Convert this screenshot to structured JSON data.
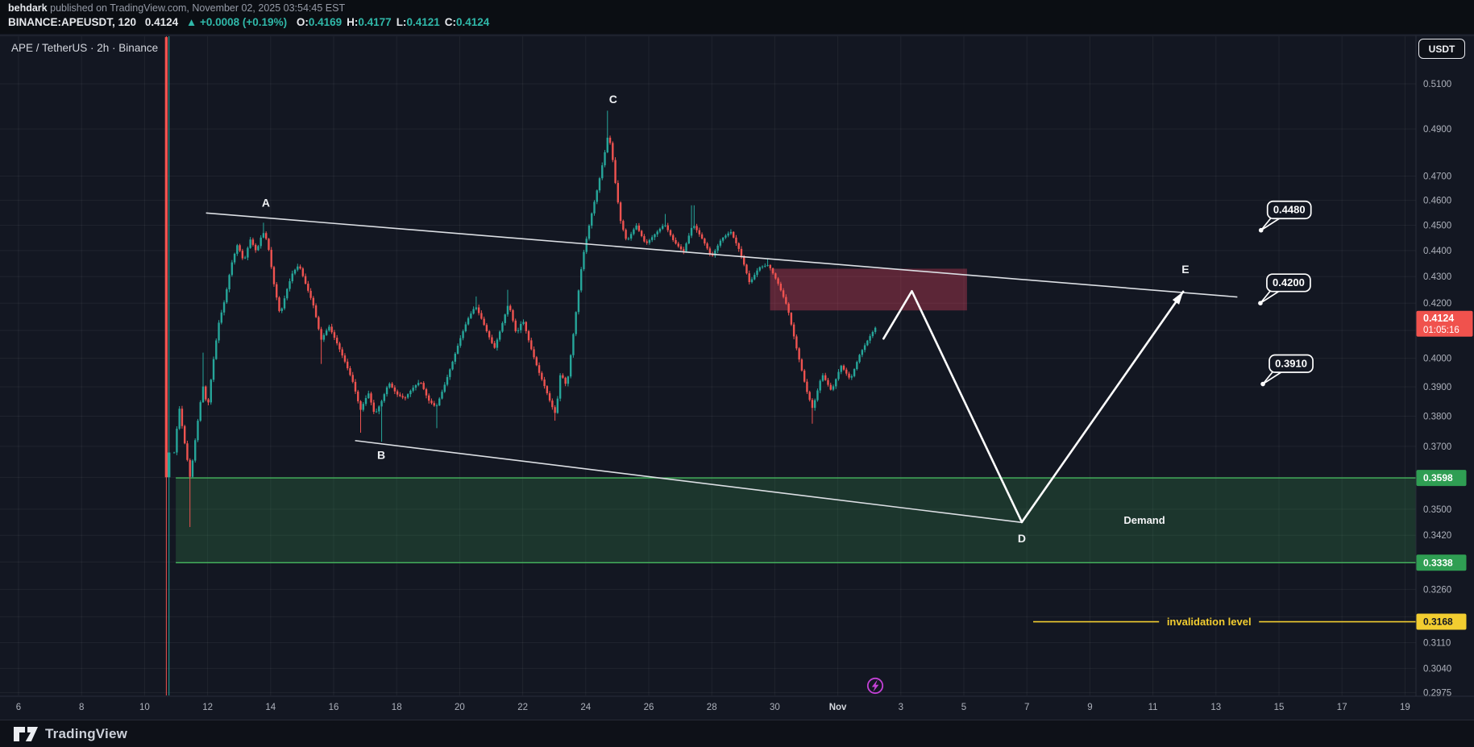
{
  "header": {
    "author": "behdark",
    "published": " published on TradingView.com, November 02, 2025 03:54:45 EST",
    "symbol_line": "BINANCE:APEUSDT, 120",
    "last_price": "0.4124",
    "change": "▲ +0.0008 (+0.19%)",
    "ohlc": [
      {
        "k": "O:",
        "v": "0.4169"
      },
      {
        "k": "H:",
        "v": "0.4177"
      },
      {
        "k": "L:",
        "v": "0.4121"
      },
      {
        "k": "C:",
        "v": "0.4124"
      }
    ]
  },
  "chart": {
    "title": "APE / TetherUS · 2h · Binance",
    "unit": "USDT"
  },
  "footer": {
    "brand": "TradingView"
  },
  "chart_data": {
    "type": "candlestick",
    "title": "APE / TetherUS · 2h · Binance",
    "symbol": "BINANCE:APEUSDT",
    "interval_minutes": 120,
    "scale_type": "log",
    "ohlc_current": {
      "open": 0.4169,
      "high": 0.4177,
      "low": 0.4121,
      "close": 0.4124,
      "change": "+0.0008",
      "change_pct": "+0.19%"
    },
    "x_range": {
      "start_label": "Oct 6",
      "end_label": "Nov 19"
    },
    "y_range": {
      "min": 0.2975,
      "max": 0.5315
    },
    "colors": {
      "up": "#26a69a",
      "down": "#ef5350",
      "bg": "#131722",
      "accent_yellow": "#f2cd30",
      "accent_green": "#2f9e53",
      "tag_red": "#f0524d",
      "zone_red": "rgba(242,70,100,0.33)",
      "zone_green_fill": "rgba(66,179,91,0.20)",
      "zone_green_edge": "#43b45c",
      "purple": "#c341d6"
    },
    "y_axis_labels": [
      {
        "p": 0.51,
        "t": "0.5100"
      },
      {
        "p": 0.49,
        "t": "0.4900"
      },
      {
        "p": 0.47,
        "t": "0.4700"
      },
      {
        "p": 0.46,
        "t": "0.4600"
      },
      {
        "p": 0.45,
        "t": "0.4500"
      },
      {
        "p": 0.44,
        "t": "0.4400"
      },
      {
        "p": 0.43,
        "t": "0.4300"
      },
      {
        "p": 0.42,
        "t": "0.4200"
      },
      {
        "p": 0.4,
        "t": "0.4000"
      },
      {
        "p": 0.39,
        "t": "0.3900"
      },
      {
        "p": 0.38,
        "t": "0.3800"
      },
      {
        "p": 0.37,
        "t": "0.3700"
      },
      {
        "p": 0.35,
        "t": "0.3500"
      },
      {
        "p": 0.342,
        "t": "0.3420"
      },
      {
        "p": 0.326,
        "t": "0.3260"
      },
      {
        "p": 0.311,
        "t": "0.3110"
      },
      {
        "p": 0.304,
        "t": "0.3040"
      },
      {
        "p": 0.2975,
        "t": "0.2975"
      }
    ],
    "y_axis_tags": [
      {
        "p": 0.3598,
        "t": "0.3598",
        "style": "green"
      },
      {
        "p": 0.3338,
        "t": "0.3338",
        "style": "green"
      },
      {
        "p": 0.3168,
        "t": "0.3168",
        "style": "yellow"
      }
    ],
    "current_price_tag": {
      "p": 0.4124,
      "t": "0.4124",
      "countdown": "01:05:16"
    },
    "x_axis_labels": [
      {
        "d": 6,
        "t": "6"
      },
      {
        "d": 8,
        "t": "8"
      },
      {
        "d": 10,
        "t": "10"
      },
      {
        "d": 12,
        "t": "12"
      },
      {
        "d": 14,
        "t": "14"
      },
      {
        "d": 16,
        "t": "16"
      },
      {
        "d": 18,
        "t": "18"
      },
      {
        "d": 20,
        "t": "20"
      },
      {
        "d": 22,
        "t": "22"
      },
      {
        "d": 24,
        "t": "24"
      },
      {
        "d": 26,
        "t": "26"
      },
      {
        "d": 28,
        "t": "28"
      },
      {
        "d": 30,
        "t": "30"
      },
      {
        "d": 32,
        "t": "Nov"
      },
      {
        "d": 34,
        "t": "3"
      },
      {
        "d": 36,
        "t": "5"
      },
      {
        "d": 38,
        "t": "7"
      },
      {
        "d": 40,
        "t": "9"
      },
      {
        "d": 42,
        "t": "11"
      },
      {
        "d": 44,
        "t": "13"
      },
      {
        "d": 46,
        "t": "15"
      },
      {
        "d": 48,
        "t": "17"
      },
      {
        "d": 50,
        "t": "19"
      }
    ],
    "grid": {
      "h_prices": [
        0.51,
        0.49,
        0.47,
        0.46,
        0.45,
        0.44,
        0.43,
        0.42,
        0.41,
        0.4,
        0.39,
        0.38,
        0.37,
        0.36,
        0.35,
        0.342,
        0.334,
        0.326,
        0.3182,
        0.311,
        0.304,
        0.2975
      ],
      "v_days": [
        6,
        8,
        10,
        12,
        14,
        16,
        18,
        20,
        22,
        24,
        26,
        28,
        30,
        32,
        34,
        36,
        38,
        40,
        42,
        44,
        46,
        48,
        50
      ]
    },
    "zones": [
      {
        "name": "supply",
        "d1": 29.85,
        "d2": 36.1,
        "p_top": 0.433,
        "p_bottom": 0.4173
      },
      {
        "name": "demand",
        "d1": 10.99,
        "d2": 50.35,
        "p_top": 0.3598,
        "p_bottom": 0.3338,
        "label": "Demand",
        "label_d": 41.73,
        "label_p": 0.3465
      }
    ],
    "trendlines": [
      {
        "name": "upper",
        "d1": 11.95,
        "p1": 0.4549,
        "d2": 44.68,
        "p2": 0.4223
      },
      {
        "name": "lower",
        "d1": 16.68,
        "p1": 0.3719,
        "d2": 37.84,
        "p2": 0.3459
      }
    ],
    "projection_path": [
      [
        33.45,
        0.407
      ],
      [
        34.35,
        0.4245
      ],
      [
        37.84,
        0.346
      ]
    ],
    "projection_arrow": {
      "from": [
        37.84,
        0.346
      ],
      "to": [
        42.96,
        0.4243
      ]
    },
    "wave_letters": [
      {
        "t": "A",
        "d": 13.85,
        "p": 0.459
      },
      {
        "t": "B",
        "d": 17.51,
        "p": 0.3672
      },
      {
        "t": "C",
        "d": 24.87,
        "p": 0.5031
      },
      {
        "t": "D",
        "d": 37.84,
        "p": 0.3411
      },
      {
        "t": "E",
        "d": 43.03,
        "p": 0.4329
      }
    ],
    "price_targets": [
      {
        "label": "0.4480",
        "price": 0.448,
        "d": 45.43
      },
      {
        "label": "0.4200",
        "price": 0.42,
        "d": 45.41
      },
      {
        "label": "0.3910",
        "price": 0.391,
        "d": 45.49
      }
    ],
    "invalidation": {
      "label": "invalidation level",
      "price": 0.3168,
      "d1": 38.2,
      "d_label": 43.78
    },
    "special_candles": [
      {
        "d": 10.69,
        "o": 0.5315,
        "h": 0.533,
        "l": 0.296,
        "c": 0.36
      },
      {
        "d": 10.775,
        "o": 0.36,
        "h": 0.532,
        "l": 0.2965,
        "c": 0.368
      }
    ],
    "price_path": [
      [
        10.94,
        0.368
      ],
      [
        11.1,
        0.383
      ],
      [
        11.25,
        0.3725
      ],
      [
        11.45,
        0.3595
      ],
      [
        11.65,
        0.3755
      ],
      [
        11.85,
        0.3905
      ],
      [
        12.0,
        0.3825
      ],
      [
        12.15,
        0.3965
      ],
      [
        12.35,
        0.4125
      ],
      [
        12.55,
        0.4215
      ],
      [
        12.75,
        0.4345
      ],
      [
        12.95,
        0.4425
      ],
      [
        13.15,
        0.4355
      ],
      [
        13.35,
        0.4445
      ],
      [
        13.55,
        0.4395
      ],
      [
        13.75,
        0.4475
      ],
      [
        13.9,
        0.4435
      ],
      [
        14.1,
        0.4275
      ],
      [
        14.3,
        0.4155
      ],
      [
        14.5,
        0.4245
      ],
      [
        14.7,
        0.4315
      ],
      [
        14.9,
        0.4345
      ],
      [
        15.1,
        0.4275
      ],
      [
        15.35,
        0.4195
      ],
      [
        15.6,
        0.4065
      ],
      [
        15.85,
        0.4115
      ],
      [
        16.1,
        0.4055
      ],
      [
        16.35,
        0.399
      ],
      [
        16.6,
        0.392
      ],
      [
        16.85,
        0.382
      ],
      [
        17.1,
        0.388
      ],
      [
        17.3,
        0.3805
      ],
      [
        17.5,
        0.3845
      ],
      [
        17.75,
        0.3915
      ],
      [
        18.0,
        0.3875
      ],
      [
        18.25,
        0.386
      ],
      [
        18.5,
        0.3895
      ],
      [
        18.75,
        0.392
      ],
      [
        19.0,
        0.3855
      ],
      [
        19.25,
        0.383
      ],
      [
        19.5,
        0.39
      ],
      [
        19.75,
        0.398
      ],
      [
        20.0,
        0.4065
      ],
      [
        20.25,
        0.414
      ],
      [
        20.5,
        0.419
      ],
      [
        20.7,
        0.414
      ],
      [
        20.9,
        0.4085
      ],
      [
        21.1,
        0.4035
      ],
      [
        21.3,
        0.4105
      ],
      [
        21.55,
        0.42
      ],
      [
        21.8,
        0.4085
      ],
      [
        22.0,
        0.414
      ],
      [
        22.25,
        0.404
      ],
      [
        22.5,
        0.3955
      ],
      [
        22.7,
        0.39
      ],
      [
        22.9,
        0.384
      ],
      [
        23.05,
        0.3805
      ],
      [
        23.2,
        0.395
      ],
      [
        23.4,
        0.39
      ],
      [
        23.6,
        0.408
      ],
      [
        23.9,
        0.437
      ],
      [
        24.15,
        0.4525
      ],
      [
        24.4,
        0.4665
      ],
      [
        24.6,
        0.4795
      ],
      [
        24.72,
        0.4885
      ],
      [
        24.85,
        0.4775
      ],
      [
        24.95,
        0.466
      ],
      [
        25.1,
        0.452
      ],
      [
        25.3,
        0.4435
      ],
      [
        25.6,
        0.45
      ],
      [
        25.9,
        0.4425
      ],
      [
        26.2,
        0.4465
      ],
      [
        26.5,
        0.4505
      ],
      [
        26.8,
        0.4435
      ],
      [
        27.1,
        0.4395
      ],
      [
        27.4,
        0.4505
      ],
      [
        27.7,
        0.4445
      ],
      [
        28.0,
        0.4375
      ],
      [
        28.3,
        0.4445
      ],
      [
        28.6,
        0.4475
      ],
      [
        28.9,
        0.4395
      ],
      [
        29.2,
        0.4275
      ],
      [
        29.5,
        0.4335
      ],
      [
        29.8,
        0.4345
      ],
      [
        30.1,
        0.4275
      ],
      [
        30.4,
        0.4185
      ],
      [
        30.7,
        0.403
      ],
      [
        31.0,
        0.389
      ],
      [
        31.2,
        0.3825
      ],
      [
        31.5,
        0.3945
      ],
      [
        31.8,
        0.3885
      ],
      [
        32.1,
        0.3975
      ],
      [
        32.4,
        0.3925
      ],
      [
        32.7,
        0.4015
      ],
      [
        33.0,
        0.4075
      ],
      [
        33.27,
        0.4124
      ]
    ],
    "wick_events": [
      {
        "d": 11.45,
        "low": 0.3445
      },
      {
        "d": 11.85,
        "high": 0.402
      },
      {
        "d": 13.75,
        "high": 0.451
      },
      {
        "d": 15.6,
        "low": 0.398
      },
      {
        "d": 16.85,
        "low": 0.3745
      },
      {
        "d": 17.5,
        "low": 0.3715
      },
      {
        "d": 19.25,
        "low": 0.376
      },
      {
        "d": 20.5,
        "high": 0.4225
      },
      {
        "d": 21.55,
        "high": 0.425
      },
      {
        "d": 23.05,
        "low": 0.3785
      },
      {
        "d": 24.72,
        "high": 0.498
      },
      {
        "d": 26.5,
        "high": 0.4545
      },
      {
        "d": 27.4,
        "high": 0.458
      },
      {
        "d": 29.8,
        "high": 0.437
      },
      {
        "d": 31.2,
        "low": 0.3775
      },
      {
        "d": 33.27,
        "high": 0.4177
      }
    ]
  }
}
